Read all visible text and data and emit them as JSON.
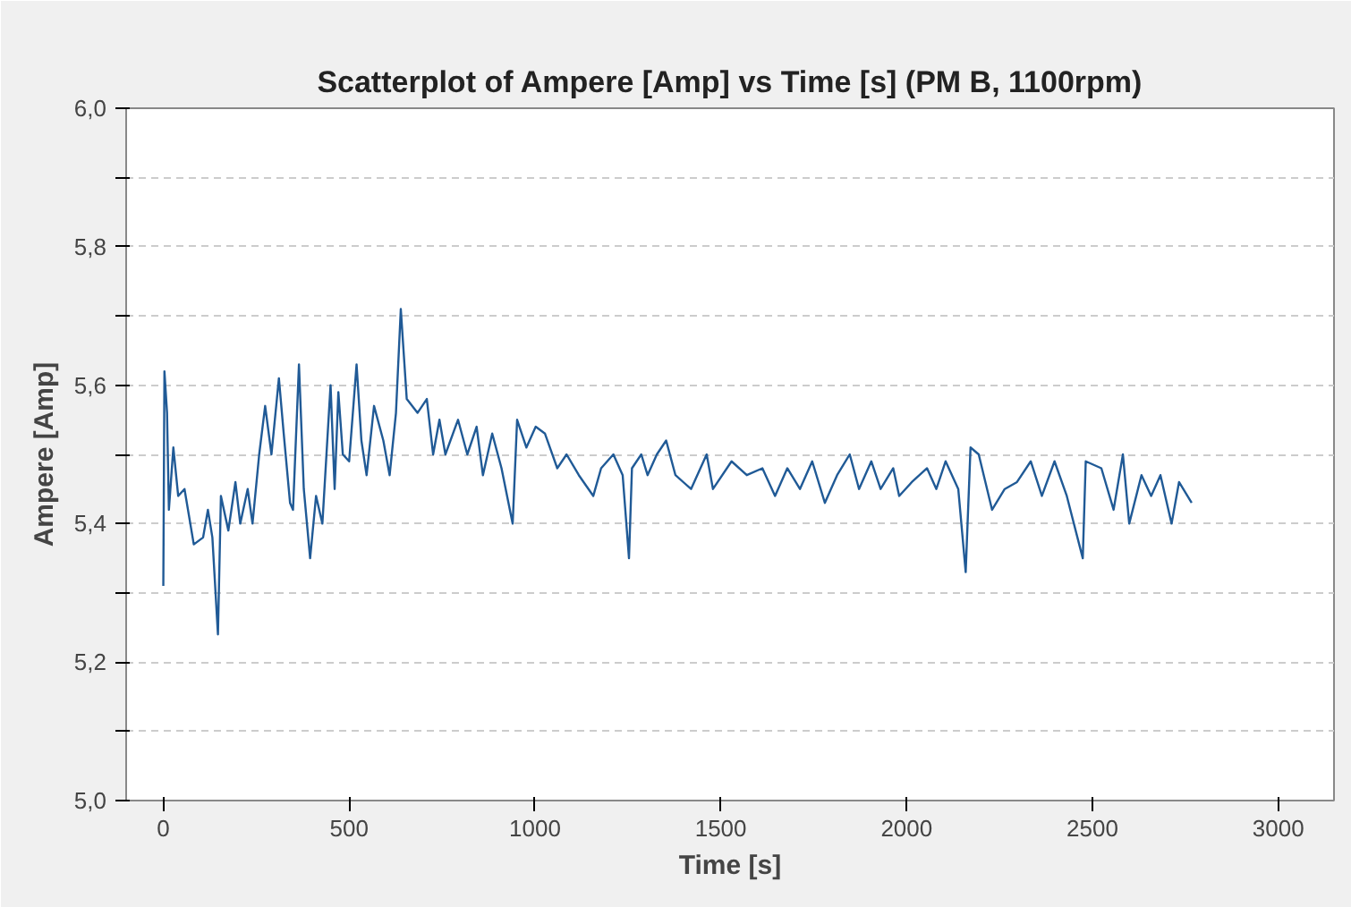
{
  "chart_data": {
    "type": "line",
    "title": "Scatterplot of Ampere [Amp] vs Time [s] (PM B, 1100rpm)",
    "xlabel": "Time [s]",
    "ylabel": "Ampere [Amp]",
    "x": [
      0,
      3,
      10,
      15,
      27,
      40,
      57,
      82,
      107,
      120,
      132,
      147,
      155,
      175,
      194,
      207,
      227,
      240,
      258,
      274,
      291,
      311,
      324,
      341,
      349,
      365,
      378,
      395,
      411,
      428,
      450,
      461,
      471,
      483,
      500,
      520,
      533,
      547,
      567,
      592,
      609,
      626,
      639,
      655,
      684,
      709,
      726,
      743,
      759,
      793,
      818,
      843,
      860,
      885,
      910,
      940,
      952,
      977,
      1002,
      1027,
      1060,
      1085,
      1118,
      1157,
      1178,
      1211,
      1236,
      1253,
      1261,
      1286,
      1303,
      1328,
      1353,
      1378,
      1420,
      1462,
      1479,
      1529,
      1570,
      1612,
      1646,
      1679,
      1713,
      1746,
      1780,
      1813,
      1847,
      1872,
      1905,
      1930,
      1964,
      1980,
      2014,
      2055,
      2080,
      2105,
      2139,
      2159,
      2172,
      2194,
      2230,
      2264,
      2297,
      2334,
      2364,
      2398,
      2431,
      2474,
      2482,
      2524,
      2557,
      2582,
      2599,
      2632,
      2658,
      2683,
      2713,
      2733,
      2767
    ],
    "series": [
      {
        "color": "#205a96",
        "values": [
          5.31,
          5.62,
          5.56,
          5.42,
          5.51,
          5.44,
          5.45,
          5.37,
          5.38,
          5.42,
          5.38,
          5.24,
          5.44,
          5.39,
          5.46,
          5.4,
          5.45,
          5.4,
          5.5,
          5.57,
          5.5,
          5.61,
          5.53,
          5.43,
          5.42,
          5.63,
          5.45,
          5.35,
          5.44,
          5.4,
          5.6,
          5.45,
          5.59,
          5.5,
          5.49,
          5.63,
          5.52,
          5.47,
          5.57,
          5.52,
          5.47,
          5.56,
          5.71,
          5.58,
          5.56,
          5.58,
          5.5,
          5.55,
          5.5,
          5.55,
          5.5,
          5.54,
          5.47,
          5.53,
          5.48,
          5.4,
          5.55,
          5.51,
          5.54,
          5.53,
          5.48,
          5.5,
          5.47,
          5.44,
          5.48,
          5.5,
          5.47,
          5.35,
          5.48,
          5.5,
          5.47,
          5.5,
          5.52,
          5.47,
          5.45,
          5.5,
          5.45,
          5.49,
          5.47,
          5.48,
          5.44,
          5.48,
          5.45,
          5.49,
          5.43,
          5.47,
          5.5,
          5.45,
          5.49,
          5.45,
          5.48,
          5.44,
          5.46,
          5.48,
          5.45,
          5.49,
          5.45,
          5.33,
          5.51,
          5.5,
          5.42,
          5.45,
          5.46,
          5.49,
          5.44,
          5.49,
          5.44,
          5.35,
          5.49,
          5.48,
          5.42,
          5.5,
          5.4,
          5.47,
          5.44,
          5.47,
          5.4,
          5.46,
          5.43
        ]
      }
    ],
    "xlim": [
      -100,
      3150
    ],
    "xticks": [
      0,
      500,
      1000,
      1500,
      2000,
      2500,
      3000
    ],
    "ylim": [
      5.0,
      6.0
    ],
    "yticks": [
      {
        "value": 5.0,
        "label": "5,0"
      },
      {
        "value": 5.1,
        "label": null
      },
      {
        "value": 5.2,
        "label": "5,2"
      },
      {
        "value": 5.3,
        "label": null
      },
      {
        "value": 5.4,
        "label": "5,4"
      },
      {
        "value": 5.5,
        "label": null
      },
      {
        "value": 5.6,
        "label": "5,6"
      },
      {
        "value": 5.7,
        "label": null
      },
      {
        "value": 5.8,
        "label": "5,8"
      },
      {
        "value": 5.9,
        "label": null
      },
      {
        "value": 6.0,
        "label": "6,0"
      }
    ],
    "grid": "y",
    "marker": "none",
    "line_style": "solid"
  }
}
